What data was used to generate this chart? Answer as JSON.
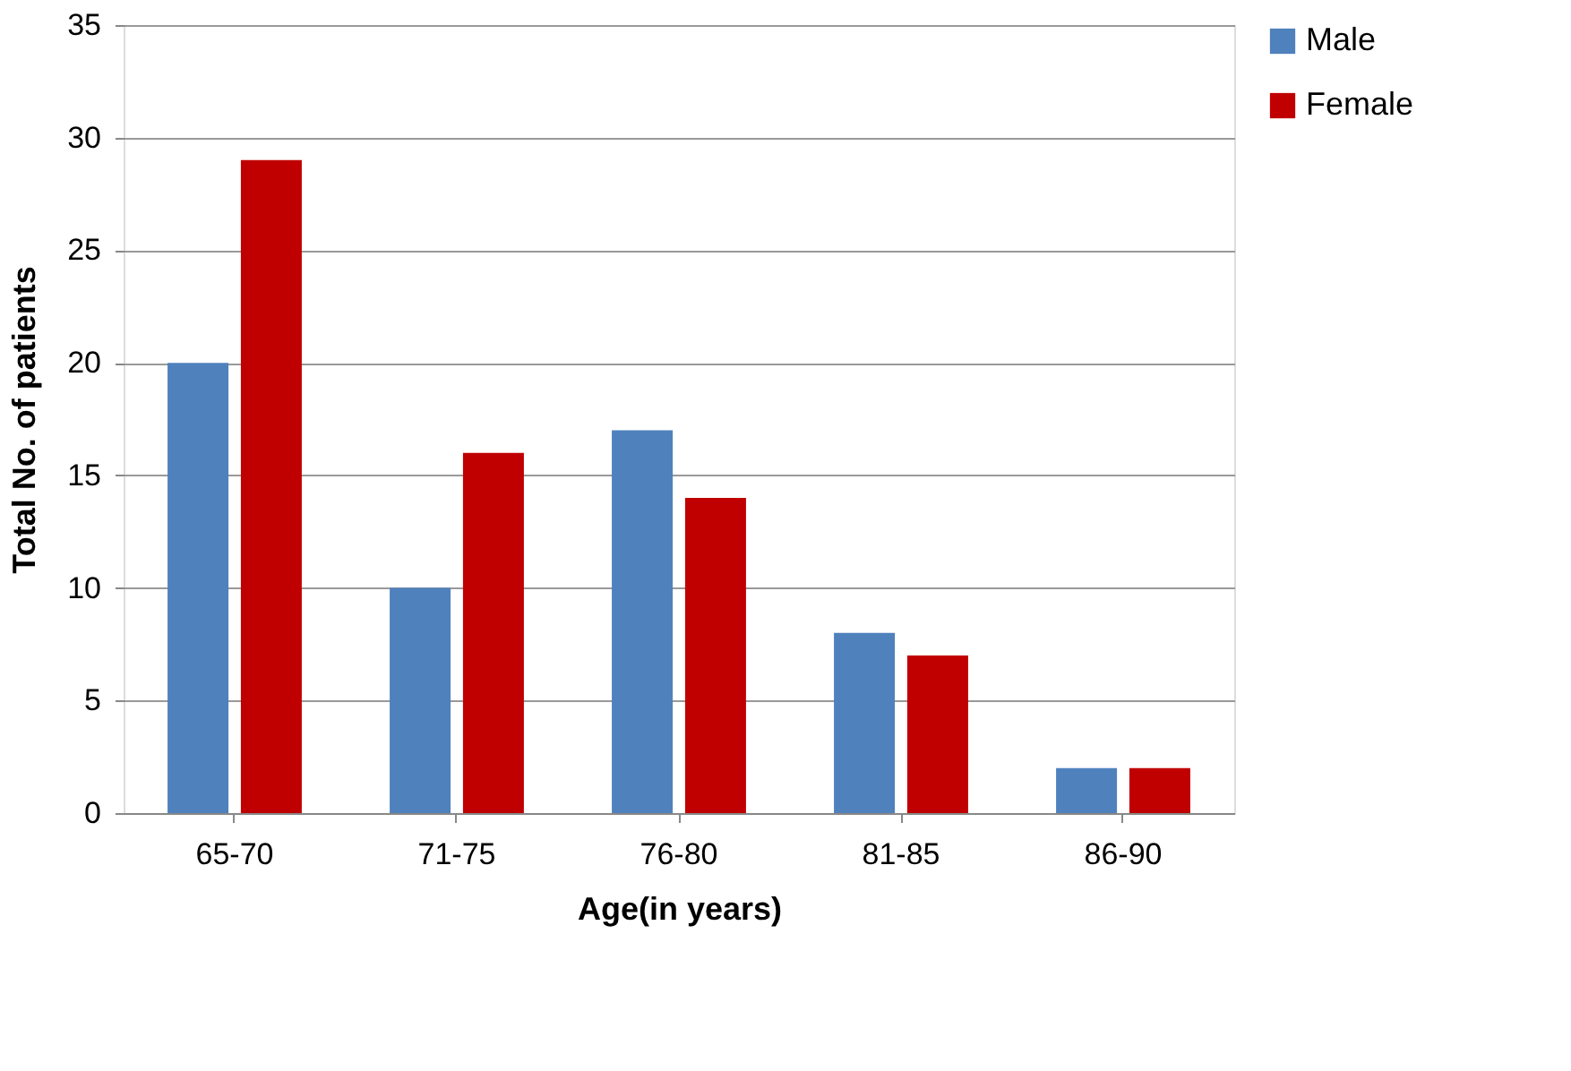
{
  "chart_data": {
    "type": "bar",
    "xlabel": "Age(in years)",
    "ylabel": "Total No. of patients",
    "categories": [
      "65-70",
      "71-75",
      "76-80",
      "81-85",
      "86-90"
    ],
    "series": [
      {
        "name": "Male",
        "color": "#4f81bd",
        "values": [
          20,
          10,
          17,
          8,
          2
        ]
      },
      {
        "name": "Female",
        "color": "#c00000",
        "values": [
          29,
          16,
          14,
          7,
          2
        ]
      }
    ],
    "ylim": [
      0,
      35
    ],
    "yticks": [
      0,
      5,
      10,
      15,
      20,
      25,
      30,
      35
    ],
    "grid": "y",
    "legend": "right"
  }
}
